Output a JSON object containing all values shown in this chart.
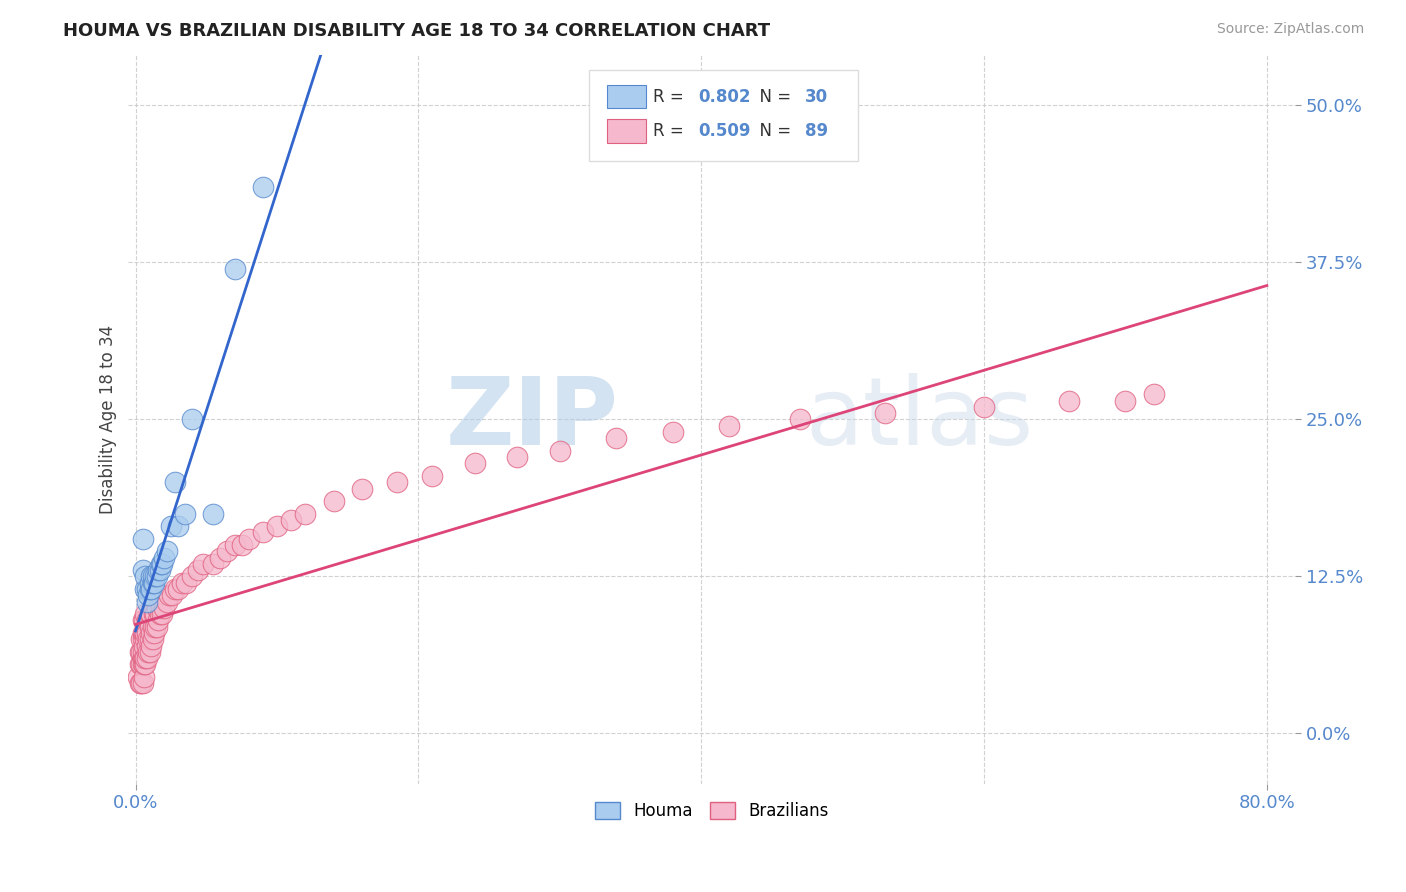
{
  "title": "HOUMA VS BRAZILIAN DISABILITY AGE 18 TO 34 CORRELATION CHART",
  "ylabel": "Disability Age 18 to 34",
  "source_text": "Source: ZipAtlas.com",
  "xlim": [
    -0.005,
    0.82
  ],
  "ylim": [
    -0.04,
    0.54
  ],
  "xtick_left": 0.0,
  "xtick_right": 0.8,
  "xtick_left_label": "0.0%",
  "xtick_right_label": "80.0%",
  "yticks": [
    0.0,
    0.125,
    0.25,
    0.375,
    0.5
  ],
  "ytick_labels": [
    "0.0%",
    "12.5%",
    "25.0%",
    "37.5%",
    "50.0%"
  ],
  "houma_color": "#aaccee",
  "houma_edge_color": "#5588cc",
  "brazilian_color": "#f5b8cc",
  "brazilian_edge_color": "#e06080",
  "houma_R": 0.802,
  "houma_N": 30,
  "brazilian_R": 0.509,
  "brazilian_N": 89,
  "houma_line_color": "#3366cc",
  "brazilian_line_color": "#dd4477",
  "legend_label_houma": "Houma",
  "legend_label_brazilian": "Brazilians",
  "watermark_zip": "ZIP",
  "watermark_atlas": "atlas",
  "background_color": "#ffffff",
  "grid_color": "#cccccc",
  "tick_color": "#5588cc",
  "houma_x": [
    0.005,
    0.005,
    0.007,
    0.007,
    0.008,
    0.008,
    0.009,
    0.01,
    0.01,
    0.011,
    0.011,
    0.012,
    0.012,
    0.013,
    0.014,
    0.015,
    0.016,
    0.017,
    0.018,
    0.019,
    0.02,
    0.022,
    0.025,
    0.028,
    0.03,
    0.035,
    0.04,
    0.055,
    0.07,
    0.09
  ],
  "houma_y": [
    0.13,
    0.155,
    0.115,
    0.125,
    0.105,
    0.115,
    0.11,
    0.115,
    0.12,
    0.115,
    0.125,
    0.12,
    0.125,
    0.12,
    0.125,
    0.125,
    0.13,
    0.13,
    0.135,
    0.135,
    0.14,
    0.145,
    0.165,
    0.2,
    0.165,
    0.175,
    0.25,
    0.175,
    0.37,
    0.435
  ],
  "brazilian_x": [
    0.002,
    0.003,
    0.003,
    0.003,
    0.004,
    0.004,
    0.004,
    0.004,
    0.005,
    0.005,
    0.005,
    0.005,
    0.005,
    0.005,
    0.005,
    0.006,
    0.006,
    0.006,
    0.006,
    0.006,
    0.006,
    0.007,
    0.007,
    0.007,
    0.007,
    0.007,
    0.008,
    0.008,
    0.008,
    0.008,
    0.009,
    0.009,
    0.009,
    0.01,
    0.01,
    0.01,
    0.01,
    0.011,
    0.011,
    0.011,
    0.012,
    0.012,
    0.013,
    0.013,
    0.014,
    0.014,
    0.015,
    0.015,
    0.016,
    0.017,
    0.018,
    0.019,
    0.02,
    0.022,
    0.024,
    0.026,
    0.028,
    0.03,
    0.033,
    0.036,
    0.04,
    0.044,
    0.048,
    0.055,
    0.06,
    0.065,
    0.07,
    0.075,
    0.08,
    0.09,
    0.1,
    0.11,
    0.12,
    0.14,
    0.16,
    0.185,
    0.21,
    0.24,
    0.27,
    0.3,
    0.34,
    0.38,
    0.42,
    0.47,
    0.53,
    0.6,
    0.66,
    0.7,
    0.72
  ],
  "brazilian_y": [
    0.045,
    0.04,
    0.055,
    0.065,
    0.04,
    0.055,
    0.065,
    0.075,
    0.04,
    0.055,
    0.06,
    0.065,
    0.075,
    0.08,
    0.09,
    0.045,
    0.055,
    0.06,
    0.07,
    0.08,
    0.09,
    0.055,
    0.06,
    0.075,
    0.08,
    0.095,
    0.06,
    0.07,
    0.08,
    0.09,
    0.065,
    0.075,
    0.09,
    0.065,
    0.075,
    0.085,
    0.095,
    0.07,
    0.08,
    0.095,
    0.075,
    0.085,
    0.08,
    0.095,
    0.085,
    0.095,
    0.085,
    0.1,
    0.09,
    0.095,
    0.1,
    0.095,
    0.1,
    0.105,
    0.11,
    0.11,
    0.115,
    0.115,
    0.12,
    0.12,
    0.125,
    0.13,
    0.135,
    0.135,
    0.14,
    0.145,
    0.15,
    0.15,
    0.155,
    0.16,
    0.165,
    0.17,
    0.175,
    0.185,
    0.195,
    0.2,
    0.205,
    0.215,
    0.22,
    0.225,
    0.235,
    0.24,
    0.245,
    0.25,
    0.255,
    0.26,
    0.265,
    0.265,
    0.27
  ]
}
